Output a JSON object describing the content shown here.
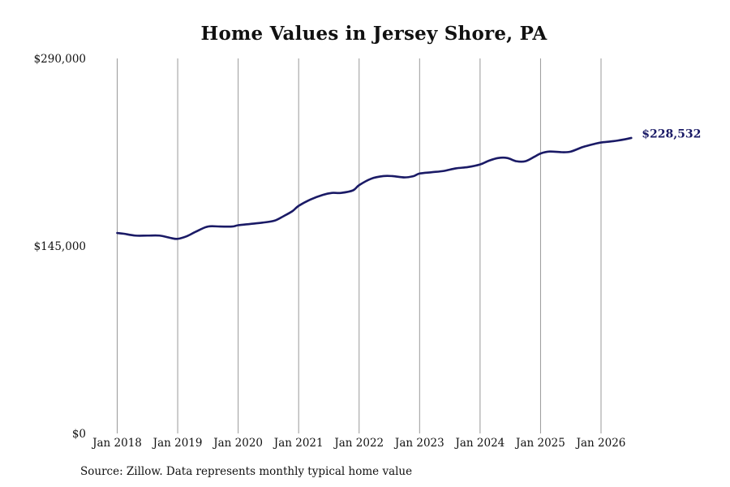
{
  "chart_data": {
    "type": "line",
    "title": "Home Values in Jersey Shore, PA",
    "xlabel": "",
    "ylabel": "",
    "ylim": [
      0,
      290000
    ],
    "y_ticks": [
      {
        "value": 0,
        "label": "$0"
      },
      {
        "value": 145000,
        "label": "$145,000"
      },
      {
        "value": 290000,
        "label": "$290,000"
      }
    ],
    "x_ticks": [
      {
        "value": 2018.0,
        "label": "Jan 2018"
      },
      {
        "value": 2019.0,
        "label": "Jan 2019"
      },
      {
        "value": 2020.0,
        "label": "Jan 2020"
      },
      {
        "value": 2021.0,
        "label": "Jan 2021"
      },
      {
        "value": 2022.0,
        "label": "Jan 2022"
      },
      {
        "value": 2023.0,
        "label": "Jan 2023"
      },
      {
        "value": 2024.0,
        "label": "Jan 2024"
      },
      {
        "value": 2025.0,
        "label": "Jan 2025"
      },
      {
        "value": 2026.0,
        "label": "Jan 2026"
      }
    ],
    "xlim": [
      2018.0,
      2026.5
    ],
    "grid": "vertical",
    "line_color": "#1a1a66",
    "grid_color": "#999999",
    "series": [
      {
        "x": [
          2018.0,
          2018.1,
          2018.3,
          2018.5,
          2018.7,
          2018.9,
          2019.0,
          2019.15,
          2019.3,
          2019.5,
          2019.7,
          2019.9,
          2020.0,
          2020.2,
          2020.4,
          2020.6,
          2020.75,
          2020.9,
          2021.0,
          2021.2,
          2021.4,
          2021.55,
          2021.7,
          2021.9,
          2022.0,
          2022.2,
          2022.4,
          2022.55,
          2022.75,
          2022.9,
          2023.0,
          2023.2,
          2023.4,
          2023.6,
          2023.8,
          2024.0,
          2024.15,
          2024.3,
          2024.45,
          2024.6,
          2024.75,
          2024.9,
          2025.0,
          2025.15,
          2025.35,
          2025.5,
          2025.7,
          2025.9,
          2026.0,
          2026.2,
          2026.4,
          2026.5
        ],
        "y": [
          155000,
          154500,
          153000,
          153000,
          153000,
          151000,
          150500,
          152500,
          156000,
          160000,
          160000,
          160000,
          161000,
          162000,
          163000,
          164500,
          168000,
          172000,
          176000,
          181000,
          184500,
          186000,
          186000,
          188000,
          192000,
          197000,
          199000,
          199000,
          198000,
          199000,
          201000,
          202000,
          203000,
          205000,
          206000,
          208000,
          211000,
          213000,
          213000,
          210500,
          210500,
          214000,
          216500,
          218000,
          217500,
          218000,
          221500,
          224000,
          225000,
          226000,
          227500,
          228532
        ],
        "end_label": "$228,532"
      }
    ]
  },
  "source_note": "Source: Zillow. Data represents monthly typical home value"
}
